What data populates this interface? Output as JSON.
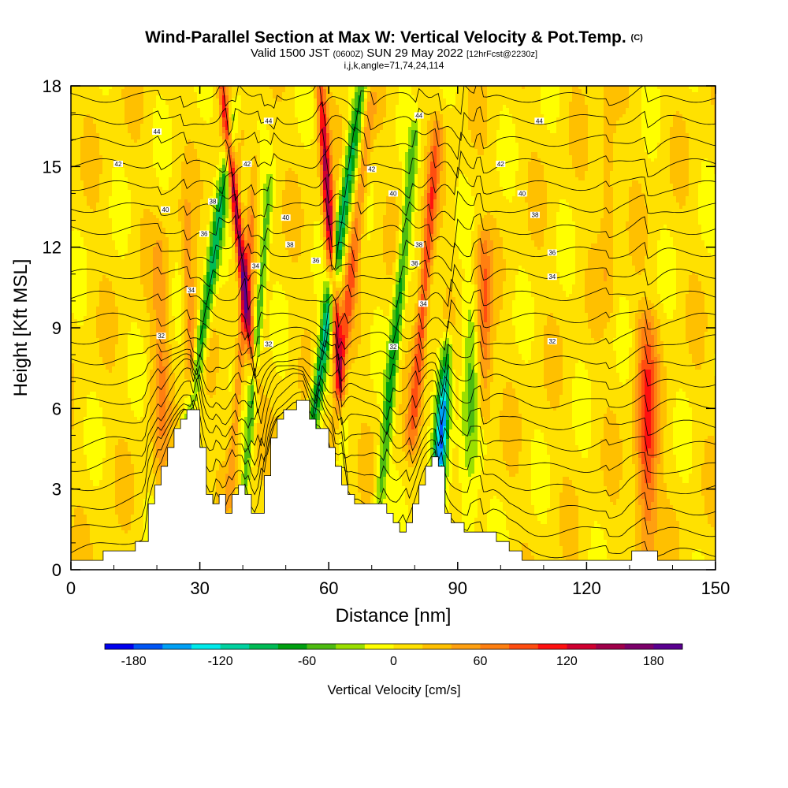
{
  "header": {
    "title": "Wind-Parallel Section at Max W: Vertical Velocity & Pot.Temp.",
    "title_tag": "(C)",
    "valid_prefix": "Valid 1500 JST",
    "valid_utc": "(0600Z)",
    "valid_date": "SUN 29 May 2022",
    "forecast_tag": "[12hrFcst@2230z]",
    "grid_info": "i,j,k,angle=71,74,24,114"
  },
  "chart_data": {
    "type": "heatmap",
    "xlabel": "Distance [nm]",
    "ylabel": "Height [Kft MSL]",
    "xlim": [
      0,
      150
    ],
    "ylim": [
      0,
      18
    ],
    "x_ticks": [
      "0",
      "30",
      "60",
      "90",
      "120",
      "150"
    ],
    "y_ticks": [
      "0",
      "3",
      "6",
      "9",
      "12",
      "15",
      "18"
    ],
    "terrain": {
      "x": [
        0,
        8,
        17,
        18,
        20,
        22,
        24,
        26,
        27,
        29,
        30,
        31,
        32,
        33,
        34,
        35,
        36,
        38,
        40,
        42,
        43,
        44,
        45,
        46,
        47,
        48,
        50,
        52,
        54,
        55,
        56,
        58,
        60,
        62,
        64,
        66,
        68,
        70,
        72,
        74,
        76,
        78,
        80,
        82,
        84,
        85,
        86,
        87,
        88,
        90,
        92,
        94,
        96,
        98,
        100,
        102,
        104,
        106,
        108,
        112,
        116,
        120,
        124,
        128,
        130,
        134,
        138,
        142,
        146,
        150
      ],
      "h": [
        0.3,
        0.6,
        1.0,
        2.5,
        3.5,
        4.4,
        5.2,
        5.9,
        5.9,
        5.9,
        4.5,
        3.0,
        2.3,
        2.3,
        3.0,
        2.3,
        2.2,
        3.0,
        3.0,
        2.0,
        1.7,
        2.5,
        3.5,
        4.5,
        5.2,
        5.6,
        5.9,
        6.2,
        6.2,
        5.6,
        5.3,
        5.3,
        4.5,
        3.5,
        3.0,
        2.5,
        2.3,
        2.3,
        2.3,
        1.8,
        1.5,
        1.7,
        2.5,
        3.5,
        4.2,
        4.4,
        3.0,
        2.0,
        1.8,
        1.6,
        1.4,
        1.4,
        1.3,
        1.3,
        1.0,
        0.7,
        0.6,
        0.4,
        0.3,
        0.3,
        0.3,
        0.3,
        0.3,
        0.3,
        0.6,
        0.6,
        0.3,
        0.3,
        0.3,
        0.3
      ]
    },
    "vertical_velocity_cm_s": {
      "background_min": -15,
      "background_max": 30,
      "features": [
        {
          "x0": 35.5,
          "z0": 17.5,
          "tilt": -0.7,
          "half_width": 1.0,
          "z_range": [
            7.5,
            18
          ],
          "peak": 140
        },
        {
          "x0": 33.5,
          "z0": 12.0,
          "tilt": 0.9,
          "half_width": 1.4,
          "z_range": [
            4.0,
            17
          ],
          "peak": -95
        },
        {
          "x0": 27.5,
          "z0": 10.0,
          "tilt": -0.2,
          "half_width": 1.3,
          "z_range": [
            5.0,
            13
          ],
          "peak": 60
        },
        {
          "x0": 41.0,
          "z0": 11.0,
          "tilt": 0.5,
          "half_width": 1.1,
          "z_range": [
            3.0,
            15
          ],
          "peak": 65
        },
        {
          "x0": 44.0,
          "z0": 10.0,
          "tilt": 0.5,
          "half_width": 1.0,
          "z_range": [
            2.5,
            14
          ],
          "peak": -75
        },
        {
          "x0": 58.5,
          "z0": 17.0,
          "tilt": -0.4,
          "half_width": 1.2,
          "z_range": [
            7.0,
            18
          ],
          "peak": 145
        },
        {
          "x0": 59.5,
          "z0": 9.0,
          "tilt": 0.9,
          "half_width": 1.5,
          "z_range": [
            2.0,
            18
          ],
          "peak": -120
        },
        {
          "x0": 66.0,
          "z0": 12.0,
          "tilt": 0.7,
          "half_width": 1.4,
          "z_range": [
            5.0,
            17
          ],
          "peak": 70
        },
        {
          "x0": 76.0,
          "z0": 9.5,
          "tilt": 0.6,
          "half_width": 1.3,
          "z_range": [
            2.0,
            16
          ],
          "peak": -85
        },
        {
          "x0": 82.5,
          "z0": 11.0,
          "tilt": 0.5,
          "half_width": 1.4,
          "z_range": [
            5.0,
            16
          ],
          "peak": 95
        },
        {
          "x0": 86.0,
          "z0": 4.5,
          "tilt": 0.4,
          "half_width": 1.5,
          "z_range": [
            2.5,
            8
          ],
          "peak": -160
        },
        {
          "x0": 96.0,
          "z0": 8.8,
          "tilt": 0.0,
          "half_width": 1.8,
          "z_range": [
            6.0,
            12
          ],
          "peak": 85
        },
        {
          "x0": 93.0,
          "z0": 6.0,
          "tilt": 0.1,
          "half_width": 2.5,
          "z_range": [
            1.3,
            10
          ],
          "peak": -55
        },
        {
          "x0": 134.0,
          "z0": 5.0,
          "tilt": 0.0,
          "half_width": 2.5,
          "z_range": [
            1.0,
            9
          ],
          "peak": 95
        },
        {
          "x0": 21.0,
          "z0": 7.5,
          "tilt": 0.0,
          "half_width": 2.0,
          "z_range": [
            3.5,
            12
          ],
          "peak": 45
        },
        {
          "x0": 125.0,
          "z0": 14.0,
          "tilt": 0.0,
          "half_width": 1.8,
          "z_range": [
            10.0,
            18
          ],
          "peak": 35
        }
      ]
    },
    "potential_temperature": {
      "levels": [
        25,
        26,
        27,
        28,
        29,
        30,
        31,
        32,
        33,
        34,
        35,
        36,
        37,
        38,
        39,
        40,
        41,
        42,
        43,
        44,
        45,
        46
      ],
      "labels": [
        {
          "text": "32",
          "x": 21,
          "z": 8.7
        },
        {
          "text": "32",
          "x": 46,
          "z": 8.4
        },
        {
          "text": "32",
          "x": 75,
          "z": 8.3
        },
        {
          "text": "32",
          "x": 112,
          "z": 8.5
        },
        {
          "text": "34",
          "x": 28,
          "z": 10.4
        },
        {
          "text": "34",
          "x": 43,
          "z": 11.3
        },
        {
          "text": "34",
          "x": 82,
          "z": 9.9
        },
        {
          "text": "34",
          "x": 112,
          "z": 10.9
        },
        {
          "text": "36",
          "x": 31,
          "z": 12.5
        },
        {
          "text": "36",
          "x": 57,
          "z": 11.5
        },
        {
          "text": "36",
          "x": 80,
          "z": 11.4
        },
        {
          "text": "36",
          "x": 112,
          "z": 11.8
        },
        {
          "text": "38",
          "x": 33,
          "z": 13.7
        },
        {
          "text": "38",
          "x": 51,
          "z": 12.1
        },
        {
          "text": "38",
          "x": 81,
          "z": 12.1
        },
        {
          "text": "38",
          "x": 108,
          "z": 13.2
        },
        {
          "text": "40",
          "x": 22,
          "z": 13.4
        },
        {
          "text": "40",
          "x": 50,
          "z": 13.1
        },
        {
          "text": "40",
          "x": 75,
          "z": 14.0
        },
        {
          "text": "40",
          "x": 105,
          "z": 14.0
        },
        {
          "text": "42",
          "x": 11,
          "z": 15.1
        },
        {
          "text": "42",
          "x": 41,
          "z": 15.1
        },
        {
          "text": "42",
          "x": 70,
          "z": 14.9
        },
        {
          "text": "42",
          "x": 100,
          "z": 15.1
        },
        {
          "text": "44",
          "x": 20,
          "z": 16.3
        },
        {
          "text": "44",
          "x": 46,
          "z": 16.7
        },
        {
          "text": "44",
          "x": 81,
          "z": 16.9
        },
        {
          "text": "44",
          "x": 109,
          "z": 16.7
        }
      ]
    }
  },
  "colorbar": {
    "title": "Vertical Velocity [cm/s]",
    "min": -200,
    "max": 200,
    "colors": [
      "#0000ee",
      "#0055f5",
      "#00a0f5",
      "#00eaea",
      "#00d2a0",
      "#00bb55",
      "#00a010",
      "#4dbb10",
      "#9adf00",
      "#ffff00",
      "#ffe100",
      "#ffc000",
      "#ffa010",
      "#ff7f10",
      "#ff4d10",
      "#ff1010",
      "#d00030",
      "#a0004a",
      "#7c006a",
      "#5a0090"
    ],
    "tick_values": [
      -180,
      -120,
      -60,
      0,
      60,
      120,
      180
    ],
    "tick_labels": [
      "-180",
      "-120",
      "-60",
      "0",
      "60",
      "120",
      "180"
    ]
  }
}
